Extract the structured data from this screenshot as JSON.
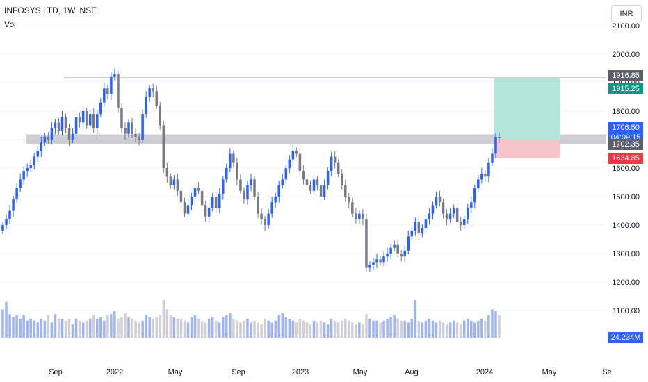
{
  "header": {
    "title": "INFOSYS LTD, 1W, NSE",
    "volume_label": "Vol"
  },
  "currency_button": "INR",
  "colors": {
    "up": "#2962ff",
    "down": "#787b86",
    "vol_up": "#a0b4f5",
    "vol_down": "#cfd1d6",
    "target_zone": "#b2e5dc",
    "stop_zone": "#f7c5c9",
    "support_band": "#c9cacf",
    "resistance_line": "#787b86"
  },
  "price_axis": {
    "ticks": [
      "2100.00",
      "2000.00",
      "1900.00",
      "1800.00",
      "1700.00",
      "1600.00",
      "1500.00",
      "1400.00",
      "1300.00",
      "1200.00",
      "1100.00"
    ]
  },
  "time_axis": {
    "ticks": [
      "Sep",
      "2022",
      "May",
      "Sep",
      "2023",
      "May",
      "Aug",
      "2024",
      "May",
      "Se"
    ]
  },
  "price_labels": {
    "resistance": "1916.85",
    "target": "1915.25",
    "last": "1706.50",
    "countdown": "04:09:15",
    "support": "1702.35",
    "stop": "1634.85",
    "volume": "24.234M"
  },
  "chart_data": {
    "type": "candlestick",
    "title": "INFOSYS LTD, 1W, NSE",
    "ylim": [
      1050,
      2150
    ],
    "y_ticks": [
      2100,
      2000,
      1900,
      1800,
      1700,
      1600,
      1500,
      1400,
      1300,
      1200,
      1100
    ],
    "x_ticks": [
      "Sep",
      "2022",
      "May",
      "Sep",
      "2023",
      "May",
      "Aug",
      "2024",
      "May",
      "Se"
    ],
    "resistance_line": 1916.85,
    "support_band": [
      1684,
      1718
    ],
    "position": {
      "entry": 1702.35,
      "target": 1915.25,
      "stop": 1634.85,
      "current": 1706.5
    },
    "last_volume": "24.234M",
    "close_series": [
      1400,
      1420,
      1450,
      1490,
      1530,
      1560,
      1590,
      1600,
      1610,
      1640,
      1660,
      1690,
      1710,
      1700,
      1740,
      1760,
      1730,
      1780,
      1740,
      1700,
      1720,
      1780,
      1760,
      1800,
      1750,
      1790,
      1740,
      1790,
      1830,
      1880,
      1860,
      1920,
      1930,
      1810,
      1740,
      1720,
      1760,
      1720,
      1710,
      1700,
      1790,
      1850,
      1880,
      1870,
      1820,
      1750,
      1600,
      1570,
      1540,
      1560,
      1520,
      1480,
      1440,
      1470,
      1500,
      1530,
      1520,
      1470,
      1430,
      1460,
      1500,
      1460,
      1510,
      1560,
      1600,
      1650,
      1620,
      1560,
      1520,
      1490,
      1540,
      1560,
      1500,
      1440,
      1420,
      1400,
      1440,
      1480,
      1500,
      1540,
      1560,
      1600,
      1630,
      1660,
      1650,
      1590,
      1560,
      1540,
      1520,
      1560,
      1540,
      1500,
      1540,
      1590,
      1640,
      1620,
      1580,
      1540,
      1500,
      1480,
      1440,
      1420,
      1440,
      1420,
      1250,
      1260,
      1270,
      1280,
      1270,
      1290,
      1300,
      1320,
      1330,
      1300,
      1290,
      1310,
      1360,
      1380,
      1410,
      1370,
      1390,
      1420,
      1440,
      1470,
      1500,
      1480,
      1440,
      1420,
      1440,
      1460,
      1410,
      1400,
      1420,
      1460,
      1480,
      1530,
      1560,
      1580,
      1570,
      1620,
      1650,
      1710,
      1706
    ],
    "volume_series": [
      30,
      38,
      25,
      22,
      24,
      20,
      24,
      18,
      20,
      18,
      16,
      20,
      18,
      24,
      16,
      25,
      20,
      20,
      18,
      20,
      14,
      20,
      18,
      16,
      18,
      20,
      24,
      20,
      22,
      18,
      24,
      25,
      28,
      20,
      22,
      26,
      22,
      20,
      18,
      16,
      18,
      24,
      22,
      20,
      22,
      24,
      40,
      30,
      24,
      22,
      20,
      20,
      18,
      16,
      22,
      24,
      20,
      18,
      16,
      20,
      22,
      18,
      16,
      22,
      24,
      26,
      20,
      18,
      16,
      18,
      20,
      16,
      18,
      16,
      14,
      20,
      18,
      16,
      18,
      24,
      26,
      22,
      20,
      18,
      16,
      20,
      18,
      16,
      14,
      18,
      16,
      18,
      16,
      14,
      20,
      18,
      16,
      18,
      20,
      18,
      16,
      14,
      16,
      14,
      25,
      20,
      18,
      18,
      16,
      18,
      20,
      22,
      24,
      20,
      18,
      18,
      16,
      20,
      40,
      18,
      16,
      18,
      20,
      18,
      16,
      18,
      16,
      14,
      16,
      18,
      16,
      14,
      18,
      20,
      18,
      16,
      18,
      20,
      18,
      24,
      30,
      28,
      24
    ]
  }
}
